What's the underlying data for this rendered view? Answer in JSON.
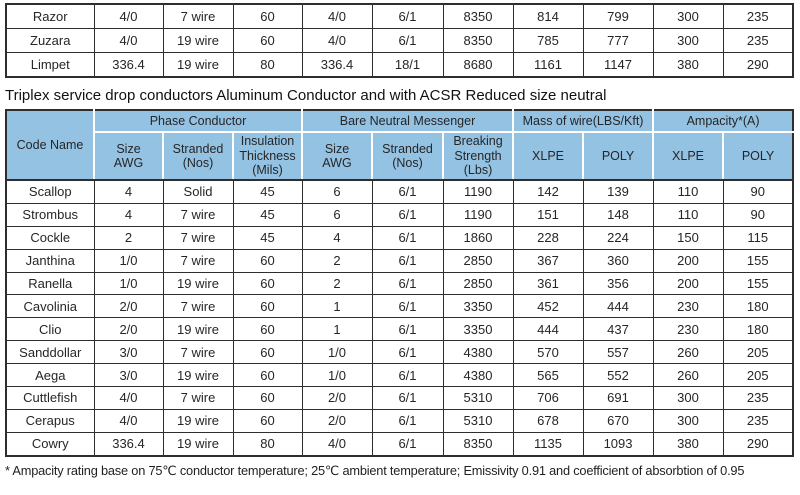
{
  "top_table": {
    "rows": [
      [
        "Razor",
        "4/0",
        "7 wire",
        "60",
        "4/0",
        "6/1",
        "8350",
        "814",
        "799",
        "300",
        "235"
      ],
      [
        "Zuzara",
        "4/0",
        "19 wire",
        "60",
        "4/0",
        "6/1",
        "8350",
        "785",
        "777",
        "300",
        "235"
      ],
      [
        "Limpet",
        "336.4",
        "19 wire",
        "80",
        "336.4",
        "18/1",
        "8680",
        "1161",
        "1147",
        "380",
        "290"
      ]
    ]
  },
  "title": "Triplex service drop conductors Aluminum Conductor and with ACSR Reduced size neutral",
  "main_table": {
    "header": {
      "code_name": "Code Name",
      "groups": [
        {
          "label": "Phase Conductor"
        },
        {
          "label": "Bare Neutral Messenger"
        },
        {
          "label": "Mass of wire(LBS/Kft)"
        },
        {
          "label": "Ampacity*(A)"
        }
      ],
      "subheaders": [
        "Size\nAWG",
        "Stranded\n(Nos)",
        "Insulation\nThickness\n(Mils)",
        "Size\nAWG",
        "Stranded\n(Nos)",
        "Breaking\nStrength\n(Lbs)",
        "XLPE",
        "POLY",
        "XLPE",
        "POLY"
      ]
    },
    "rows": [
      [
        "Scallop",
        "4",
        "Solid",
        "45",
        "6",
        "6/1",
        "1190",
        "142",
        "139",
        "110",
        "90"
      ],
      [
        "Strombus",
        "4",
        "7 wire",
        "45",
        "6",
        "6/1",
        "1190",
        "151",
        "148",
        "110",
        "90"
      ],
      [
        "Cockle",
        "2",
        "7 wire",
        "45",
        "4",
        "6/1",
        "1860",
        "228",
        "224",
        "150",
        "115"
      ],
      [
        "Janthina",
        "1/0",
        "7 wire",
        "60",
        "2",
        "6/1",
        "2850",
        "367",
        "360",
        "200",
        "155"
      ],
      [
        "Ranella",
        "1/0",
        "19 wire",
        "60",
        "2",
        "6/1",
        "2850",
        "361",
        "356",
        "200",
        "155"
      ],
      [
        "Cavolinia",
        "2/0",
        "7 wire",
        "60",
        "1",
        "6/1",
        "3350",
        "452",
        "444",
        "230",
        "180"
      ],
      [
        "Clio",
        "2/0",
        "19 wire",
        "60",
        "1",
        "6/1",
        "3350",
        "444",
        "437",
        "230",
        "180"
      ],
      [
        "Sanddollar",
        "3/0",
        "7 wire",
        "60",
        "1/0",
        "6/1",
        "4380",
        "570",
        "557",
        "260",
        "205"
      ],
      [
        "Aega",
        "3/0",
        "19 wire",
        "60",
        "1/0",
        "6/1",
        "4380",
        "565",
        "552",
        "260",
        "205"
      ],
      [
        "Cuttlefish",
        "4/0",
        "7 wire",
        "60",
        "2/0",
        "6/1",
        "5310",
        "706",
        "691",
        "300",
        "235"
      ],
      [
        "Cerapus",
        "4/0",
        "19 wire",
        "60",
        "2/0",
        "6/1",
        "5310",
        "678",
        "670",
        "300",
        "235"
      ],
      [
        "Cowry",
        "336.4",
        "19 wire",
        "80",
        "4/0",
        "6/1",
        "8350",
        "1135",
        "1093",
        "380",
        "290"
      ]
    ]
  },
  "footnote": "* Ampacity rating base on 75℃ conductor temperature; 25℃ ambient temperature; Emissivity 0.91 and coefficient of absorbtion of 0.95",
  "colors": {
    "header_bg": "#93c2e3",
    "border": "#2e2e2e",
    "text": "#262626"
  }
}
